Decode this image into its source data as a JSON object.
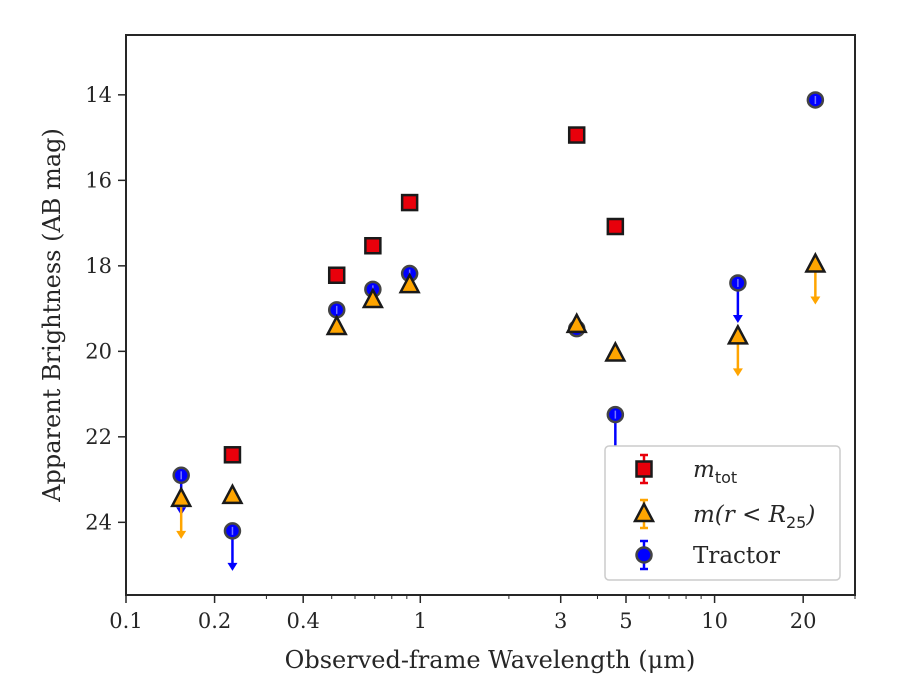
{
  "chart_data": {
    "type": "scatter",
    "xlabel": "Observed-frame Wavelength (μm)",
    "ylabel": "Apparent Brightness (AB mag)",
    "x_scale": "log",
    "y_inverted": true,
    "xlim": [
      0.1,
      30
    ],
    "ylim": [
      25.7,
      12.6
    ],
    "x_ticks": [
      0.1,
      0.2,
      0.4,
      1,
      3,
      5,
      10,
      20
    ],
    "x_tick_labels": [
      "0.1",
      "0.2",
      "0.4",
      "1",
      "3",
      "5",
      "10",
      "20"
    ],
    "y_ticks": [
      14,
      16,
      18,
      20,
      22,
      24
    ],
    "y_tick_labels": [
      "14",
      "16",
      "18",
      "20",
      "22",
      "24"
    ],
    "grid": false,
    "legend_position": "lower-right",
    "series": [
      {
        "name": "m_tot",
        "label_main": "m",
        "label_sub": "tot",
        "marker": "square",
        "fill": "#e8000b",
        "err_color": "#e8000b",
        "points": [
          {
            "x": 0.23,
            "y": 22.42,
            "upper_limit": false
          },
          {
            "x": 0.52,
            "y": 18.22,
            "upper_limit": false
          },
          {
            "x": 0.69,
            "y": 17.53,
            "upper_limit": false
          },
          {
            "x": 0.92,
            "y": 16.52,
            "upper_limit": false
          },
          {
            "x": 3.4,
            "y": 14.94,
            "upper_limit": false
          },
          {
            "x": 4.6,
            "y": 17.08,
            "upper_limit": false
          }
        ]
      },
      {
        "name": "m(r < R25)",
        "label_main": "m(r < R",
        "label_sub": "25",
        "label_tail": ")",
        "marker": "triangle",
        "fill": "#ffa500",
        "err_color": "#ffa500",
        "points": [
          {
            "x": 0.154,
            "y": 23.45,
            "upper_limit": true
          },
          {
            "x": 0.23,
            "y": 23.38,
            "upper_limit": false
          },
          {
            "x": 0.52,
            "y": 19.43,
            "upper_limit": false
          },
          {
            "x": 0.69,
            "y": 18.8,
            "upper_limit": false
          },
          {
            "x": 0.92,
            "y": 18.45,
            "upper_limit": false
          },
          {
            "x": 3.4,
            "y": 19.38,
            "upper_limit": false
          },
          {
            "x": 4.6,
            "y": 20.05,
            "upper_limit": false
          },
          {
            "x": 12.0,
            "y": 19.65,
            "upper_limit": true
          },
          {
            "x": 22.0,
            "y": 17.97,
            "upper_limit": true
          }
        ]
      },
      {
        "name": "Tractor",
        "label_main": "Tractor",
        "marker": "circle",
        "fill": "#0000ff",
        "err_color": "#0000ff",
        "points": [
          {
            "x": 0.154,
            "y": 22.9,
            "upper_limit": true
          },
          {
            "x": 0.23,
            "y": 24.2,
            "upper_limit": true
          },
          {
            "x": 0.52,
            "y": 19.03,
            "upper_limit": false
          },
          {
            "x": 0.69,
            "y": 18.55,
            "upper_limit": false
          },
          {
            "x": 0.92,
            "y": 18.18,
            "upper_limit": false
          },
          {
            "x": 3.4,
            "y": 19.47,
            "upper_limit": false
          },
          {
            "x": 4.6,
            "y": 21.48,
            "upper_limit": true
          },
          {
            "x": 12.0,
            "y": 18.4,
            "upper_limit": true
          },
          {
            "x": 22.0,
            "y": 14.12,
            "upper_limit": false
          }
        ]
      }
    ]
  }
}
